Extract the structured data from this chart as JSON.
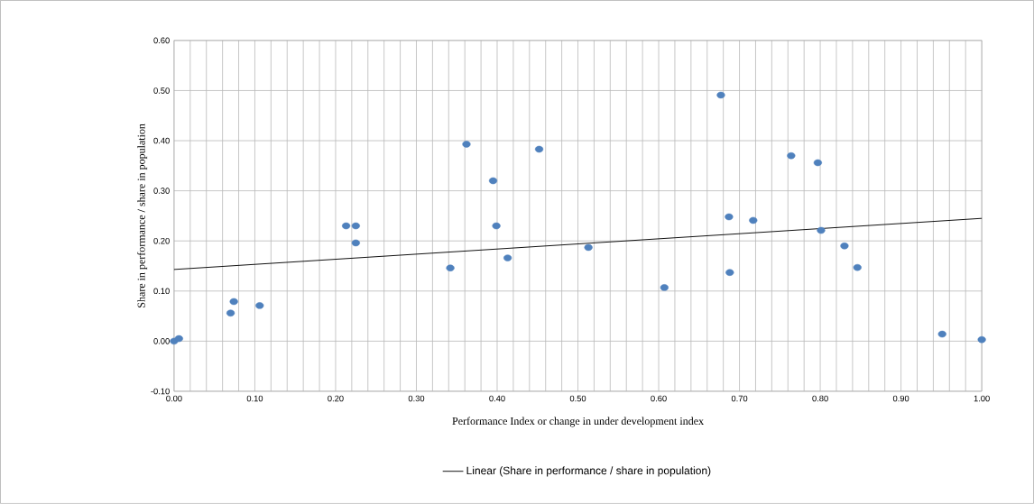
{
  "chart_data": {
    "type": "scatter",
    "xlabel": "Performance Index or change in under development index",
    "ylabel": "Share in performance / share in population",
    "xlim": [
      0,
      1
    ],
    "ylim": [
      -0.1,
      0.6
    ],
    "xticks": [
      {
        "value": 0,
        "label": "0.00"
      },
      {
        "value": 0.02,
        "label": null
      },
      {
        "value": 0.04,
        "label": null
      },
      {
        "value": 0.06,
        "label": null
      },
      {
        "value": 0.08,
        "label": null
      },
      {
        "value": 0.1,
        "label": "0.10"
      },
      {
        "value": 0.12,
        "label": null
      },
      {
        "value": 0.14,
        "label": null
      },
      {
        "value": 0.16,
        "label": null
      },
      {
        "value": 0.18,
        "label": null
      },
      {
        "value": 0.2,
        "label": "0.20"
      },
      {
        "value": 0.22,
        "label": null
      },
      {
        "value": 0.24,
        "label": null
      },
      {
        "value": 0.26,
        "label": null
      },
      {
        "value": 0.28,
        "label": null
      },
      {
        "value": 0.3,
        "label": "0.30"
      },
      {
        "value": 0.32,
        "label": null
      },
      {
        "value": 0.34,
        "label": null
      },
      {
        "value": 0.36,
        "label": null
      },
      {
        "value": 0.38,
        "label": null
      },
      {
        "value": 0.4,
        "label": "0.40"
      },
      {
        "value": 0.42,
        "label": null
      },
      {
        "value": 0.44,
        "label": null
      },
      {
        "value": 0.46,
        "label": null
      },
      {
        "value": 0.48,
        "label": null
      },
      {
        "value": 0.5,
        "label": "0.50"
      },
      {
        "value": 0.52,
        "label": null
      },
      {
        "value": 0.54,
        "label": null
      },
      {
        "value": 0.56,
        "label": null
      },
      {
        "value": 0.58,
        "label": null
      },
      {
        "value": 0.6,
        "label": "0.60"
      },
      {
        "value": 0.62,
        "label": null
      },
      {
        "value": 0.64,
        "label": null
      },
      {
        "value": 0.66,
        "label": null
      },
      {
        "value": 0.68,
        "label": null
      },
      {
        "value": 0.7,
        "label": "0.70"
      },
      {
        "value": 0.72,
        "label": null
      },
      {
        "value": 0.74,
        "label": null
      },
      {
        "value": 0.76,
        "label": null
      },
      {
        "value": 0.78,
        "label": null
      },
      {
        "value": 0.8,
        "label": "0.80"
      },
      {
        "value": 0.82,
        "label": null
      },
      {
        "value": 0.84,
        "label": null
      },
      {
        "value": 0.86,
        "label": null
      },
      {
        "value": 0.88,
        "label": null
      },
      {
        "value": 0.9,
        "label": "0.90"
      },
      {
        "value": 0.92,
        "label": null
      },
      {
        "value": 0.94,
        "label": null
      },
      {
        "value": 0.96,
        "label": null
      },
      {
        "value": 0.98,
        "label": null
      },
      {
        "value": 1,
        "label": "1.00"
      }
    ],
    "yticks": [
      {
        "value": -0.1,
        "label": "-0.10"
      },
      {
        "value": 0,
        "label": "0.00"
      },
      {
        "value": 0.1,
        "label": "0.10"
      },
      {
        "value": 0.2,
        "label": "0.20"
      },
      {
        "value": 0.3,
        "label": "0.30"
      },
      {
        "value": 0.4,
        "label": "0.40"
      },
      {
        "value": 0.5,
        "label": "0.50"
      },
      {
        "value": 0.6,
        "label": "0.60"
      }
    ],
    "grid": true,
    "legend": "bottom",
    "series": [
      {
        "type": "scatter",
        "color": "#4f81bd",
        "marker": "circle",
        "x": [
          0.0,
          0.006,
          0.07,
          0.074,
          0.106,
          0.213,
          0.225,
          0.225,
          0.342,
          0.362,
          0.395,
          0.399,
          0.413,
          0.452,
          0.513,
          0.607,
          0.677,
          0.687,
          0.688,
          0.717,
          0.764,
          0.797,
          0.801,
          0.83,
          0.846,
          0.951,
          1.0
        ],
        "values": [
          0.0,
          0.005,
          0.056,
          0.079,
          0.071,
          0.23,
          0.23,
          0.196,
          0.146,
          0.393,
          0.32,
          0.23,
          0.166,
          0.383,
          0.187,
          0.107,
          0.491,
          0.248,
          0.137,
          0.241,
          0.37,
          0.356,
          0.221,
          0.19,
          0.147,
          0.014,
          0.003
        ]
      },
      {
        "type": "line",
        "name": "Linear (Share in performance / share in population)",
        "color": "#000000",
        "marker": "none",
        "line_style": "solid",
        "x": [
          0,
          1
        ],
        "values": [
          0.143,
          0.245
        ]
      }
    ]
  }
}
